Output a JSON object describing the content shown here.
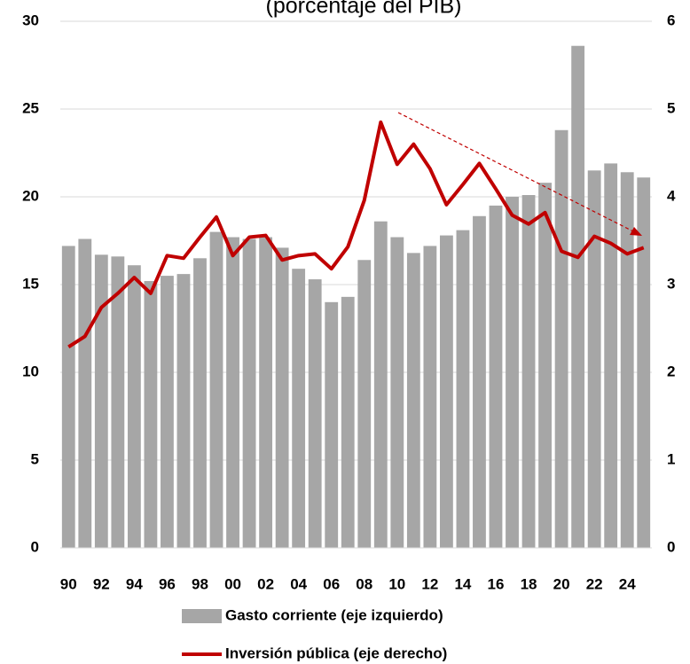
{
  "chart_data": {
    "type": "bar_line",
    "title": "(porcentaje del PIB)",
    "categories": [
      "90",
      null,
      "92",
      null,
      "94",
      null,
      "96",
      null,
      "98",
      null,
      "00",
      null,
      "02",
      null,
      "04",
      null,
      "06",
      null,
      "08",
      null,
      "10",
      null,
      "12",
      null,
      "14",
      null,
      "16",
      null,
      "18",
      null,
      "20",
      null,
      "22",
      null,
      "24",
      null
    ],
    "series": [
      {
        "name": "Gasto corriente (eje izquierdo)",
        "color": "#a6a6a6",
        "kind": "bar",
        "axis": "y",
        "values": [
          17.2,
          17.6,
          16.7,
          16.6,
          16.1,
          15.2,
          15.5,
          15.6,
          16.5,
          18.0,
          17.7,
          17.6,
          17.7,
          17.1,
          15.9,
          15.3,
          14.0,
          14.3,
          16.4,
          18.6,
          17.7,
          16.8,
          17.2,
          17.8,
          18.1,
          18.9,
          19.5,
          20.0,
          20.1,
          20.8,
          23.8,
          28.6,
          21.5,
          21.9,
          21.4,
          21.1
        ]
      },
      {
        "name": "Inversión pública (eje derecho)",
        "color": "#c00000",
        "kind": "line",
        "axis": "y2",
        "values": [
          2.29,
          2.41,
          2.74,
          2.9,
          3.08,
          2.9,
          3.33,
          3.3,
          3.54,
          3.77,
          3.33,
          3.54,
          3.56,
          3.28,
          3.33,
          3.35,
          3.18,
          3.43,
          3.96,
          4.85,
          4.37,
          4.6,
          4.32,
          3.91,
          4.14,
          4.38,
          4.09,
          3.79,
          3.69,
          3.82,
          3.38,
          3.31,
          3.55,
          3.47,
          3.35,
          3.42
        ]
      }
    ],
    "ylim": [
      0,
      30
    ],
    "yticks": [
      0,
      5,
      10,
      15,
      20,
      25,
      30
    ],
    "y2lim": [
      0,
      6
    ],
    "y2ticks": [
      0,
      1,
      2,
      3,
      4,
      5,
      6
    ],
    "grid": true
  }
}
